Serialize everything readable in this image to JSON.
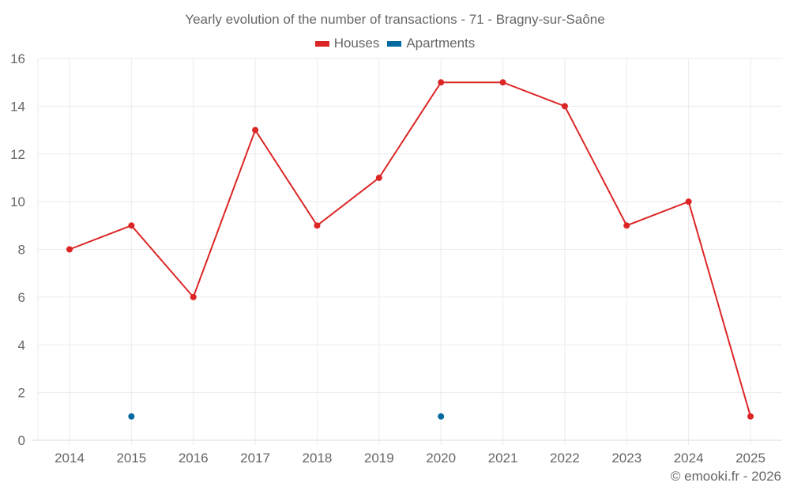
{
  "chart_data": {
    "type": "line",
    "title": "Yearly evolution of the number of transactions - 71 - Bragny-sur-Saône",
    "xlabel": "",
    "ylabel": "",
    "categories": [
      "2014",
      "2015",
      "2016",
      "2017",
      "2018",
      "2019",
      "2020",
      "2021",
      "2022",
      "2023",
      "2024",
      "2025"
    ],
    "series": [
      {
        "name": "Houses",
        "color": "#dc2626",
        "values": [
          8,
          9,
          6,
          13,
          9,
          11,
          15,
          15,
          14,
          9,
          10,
          1
        ]
      },
      {
        "name": "Apartments",
        "color": "#0369a1",
        "values": [
          null,
          1,
          null,
          null,
          null,
          null,
          1,
          null,
          null,
          null,
          null,
          null
        ]
      }
    ],
    "ylim": [
      0,
      16
    ],
    "yticks": [
      0,
      2,
      4,
      6,
      8,
      10,
      12,
      14,
      16
    ],
    "grid": true,
    "legend_position": "top"
  },
  "header": {
    "title": "Yearly evolution of the number of transactions - 71 - Bragny-sur-Saône"
  },
  "legend": {
    "items": [
      {
        "label": "Houses",
        "color": "#dc2626"
      },
      {
        "label": "Apartments",
        "color": "#0369a1"
      }
    ]
  },
  "footer": {
    "credit": "© emooki.fr - 2026"
  }
}
